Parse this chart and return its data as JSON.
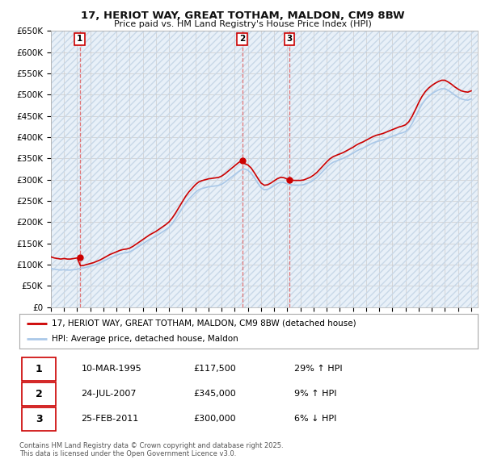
{
  "title": "17, HERIOT WAY, GREAT TOTHAM, MALDON, CM9 8BW",
  "subtitle": "Price paid vs. HM Land Registry's House Price Index (HPI)",
  "ylim": [
    0,
    650000
  ],
  "yticks": [
    0,
    50000,
    100000,
    150000,
    200000,
    250000,
    300000,
    350000,
    400000,
    450000,
    500000,
    550000,
    600000,
    650000
  ],
  "ytick_labels": [
    "£0",
    "£50K",
    "£100K",
    "£150K",
    "£200K",
    "£250K",
    "£300K",
    "£350K",
    "£400K",
    "£450K",
    "£500K",
    "£550K",
    "£600K",
    "£650K"
  ],
  "xlim_start": 1993.0,
  "xlim_end": 2025.5,
  "sale_dates": [
    1995.19,
    2007.56,
    2011.15
  ],
  "sale_prices": [
    117500,
    345000,
    300000
  ],
  "sale_labels": [
    "1",
    "2",
    "3"
  ],
  "property_line_color": "#cc0000",
  "hpi_line_color": "#aac8e8",
  "dashed_line_color": "#e06060",
  "background_color": "#e8f0f8",
  "plot_bg_color": "#ffffff",
  "grid_color": "#cccccc",
  "hatch_color": "#c8d8e8",
  "legend_entries": [
    "17, HERIOT WAY, GREAT TOTHAM, MALDON, CM9 8BW (detached house)",
    "HPI: Average price, detached house, Maldon"
  ],
  "table_rows": [
    [
      "1",
      "10-MAR-1995",
      "£117,500",
      "29% ↑ HPI"
    ],
    [
      "2",
      "24-JUL-2007",
      "£345,000",
      "9% ↑ HPI"
    ],
    [
      "3",
      "25-FEB-2011",
      "£300,000",
      "6% ↓ HPI"
    ]
  ],
  "footnote": "Contains HM Land Registry data © Crown copyright and database right 2025.\nThis data is licensed under the Open Government Licence v3.0.",
  "hpi_data_x": [
    1993.0,
    1993.25,
    1993.5,
    1993.75,
    1994.0,
    1994.25,
    1994.5,
    1994.75,
    1995.0,
    1995.25,
    1995.5,
    1995.75,
    1996.0,
    1996.25,
    1996.5,
    1996.75,
    1997.0,
    1997.25,
    1997.5,
    1997.75,
    1998.0,
    1998.25,
    1998.5,
    1998.75,
    1999.0,
    1999.25,
    1999.5,
    1999.75,
    2000.0,
    2000.25,
    2000.5,
    2000.75,
    2001.0,
    2001.25,
    2001.5,
    2001.75,
    2002.0,
    2002.25,
    2002.5,
    2002.75,
    2003.0,
    2003.25,
    2003.5,
    2003.75,
    2004.0,
    2004.25,
    2004.5,
    2004.75,
    2005.0,
    2005.25,
    2005.5,
    2005.75,
    2006.0,
    2006.25,
    2006.5,
    2006.75,
    2007.0,
    2007.25,
    2007.5,
    2007.75,
    2008.0,
    2008.25,
    2008.5,
    2008.75,
    2009.0,
    2009.25,
    2009.5,
    2009.75,
    2010.0,
    2010.25,
    2010.5,
    2010.75,
    2011.0,
    2011.25,
    2011.5,
    2011.75,
    2012.0,
    2012.25,
    2012.5,
    2012.75,
    2013.0,
    2013.25,
    2013.5,
    2013.75,
    2014.0,
    2014.25,
    2014.5,
    2014.75,
    2015.0,
    2015.25,
    2015.5,
    2015.75,
    2016.0,
    2016.25,
    2016.5,
    2016.75,
    2017.0,
    2017.25,
    2017.5,
    2017.75,
    2018.0,
    2018.25,
    2018.5,
    2018.75,
    2019.0,
    2019.25,
    2019.5,
    2019.75,
    2020.0,
    2020.25,
    2020.5,
    2020.75,
    2021.0,
    2021.25,
    2021.5,
    2021.75,
    2022.0,
    2022.25,
    2022.5,
    2022.75,
    2023.0,
    2023.25,
    2023.5,
    2023.75,
    2024.0,
    2024.25,
    2024.5,
    2024.75,
    2025.0
  ],
  "hpi_data_y": [
    91000,
    89000,
    88000,
    87000,
    88000,
    87000,
    87000,
    88000,
    89000,
    91000,
    92000,
    94000,
    96000,
    98000,
    101000,
    104000,
    108000,
    112000,
    116000,
    119000,
    122000,
    125000,
    127000,
    128000,
    130000,
    134000,
    139000,
    144000,
    149000,
    154000,
    159000,
    163000,
    167000,
    172000,
    177000,
    182000,
    188000,
    197000,
    208000,
    220000,
    232000,
    244000,
    254000,
    262000,
    270000,
    276000,
    279000,
    281000,
    283000,
    284000,
    285000,
    286000,
    289000,
    294000,
    300000,
    306000,
    312000,
    318000,
    323000,
    325000,
    322000,
    315000,
    304000,
    292000,
    281000,
    276000,
    277000,
    281000,
    286000,
    291000,
    294000,
    293000,
    290000,
    288000,
    287000,
    287000,
    287000,
    288000,
    291000,
    294000,
    299000,
    305000,
    313000,
    321000,
    329000,
    336000,
    341000,
    344000,
    347000,
    350000,
    354000,
    358000,
    362000,
    367000,
    371000,
    374000,
    378000,
    382000,
    386000,
    389000,
    391000,
    393000,
    396000,
    399000,
    402000,
    405000,
    408000,
    410000,
    413000,
    420000,
    432000,
    447000,
    463000,
    477000,
    488000,
    496000,
    502000,
    507000,
    511000,
    514000,
    514000,
    510000,
    505000,
    499000,
    494000,
    490000,
    488000,
    487000,
    490000
  ]
}
